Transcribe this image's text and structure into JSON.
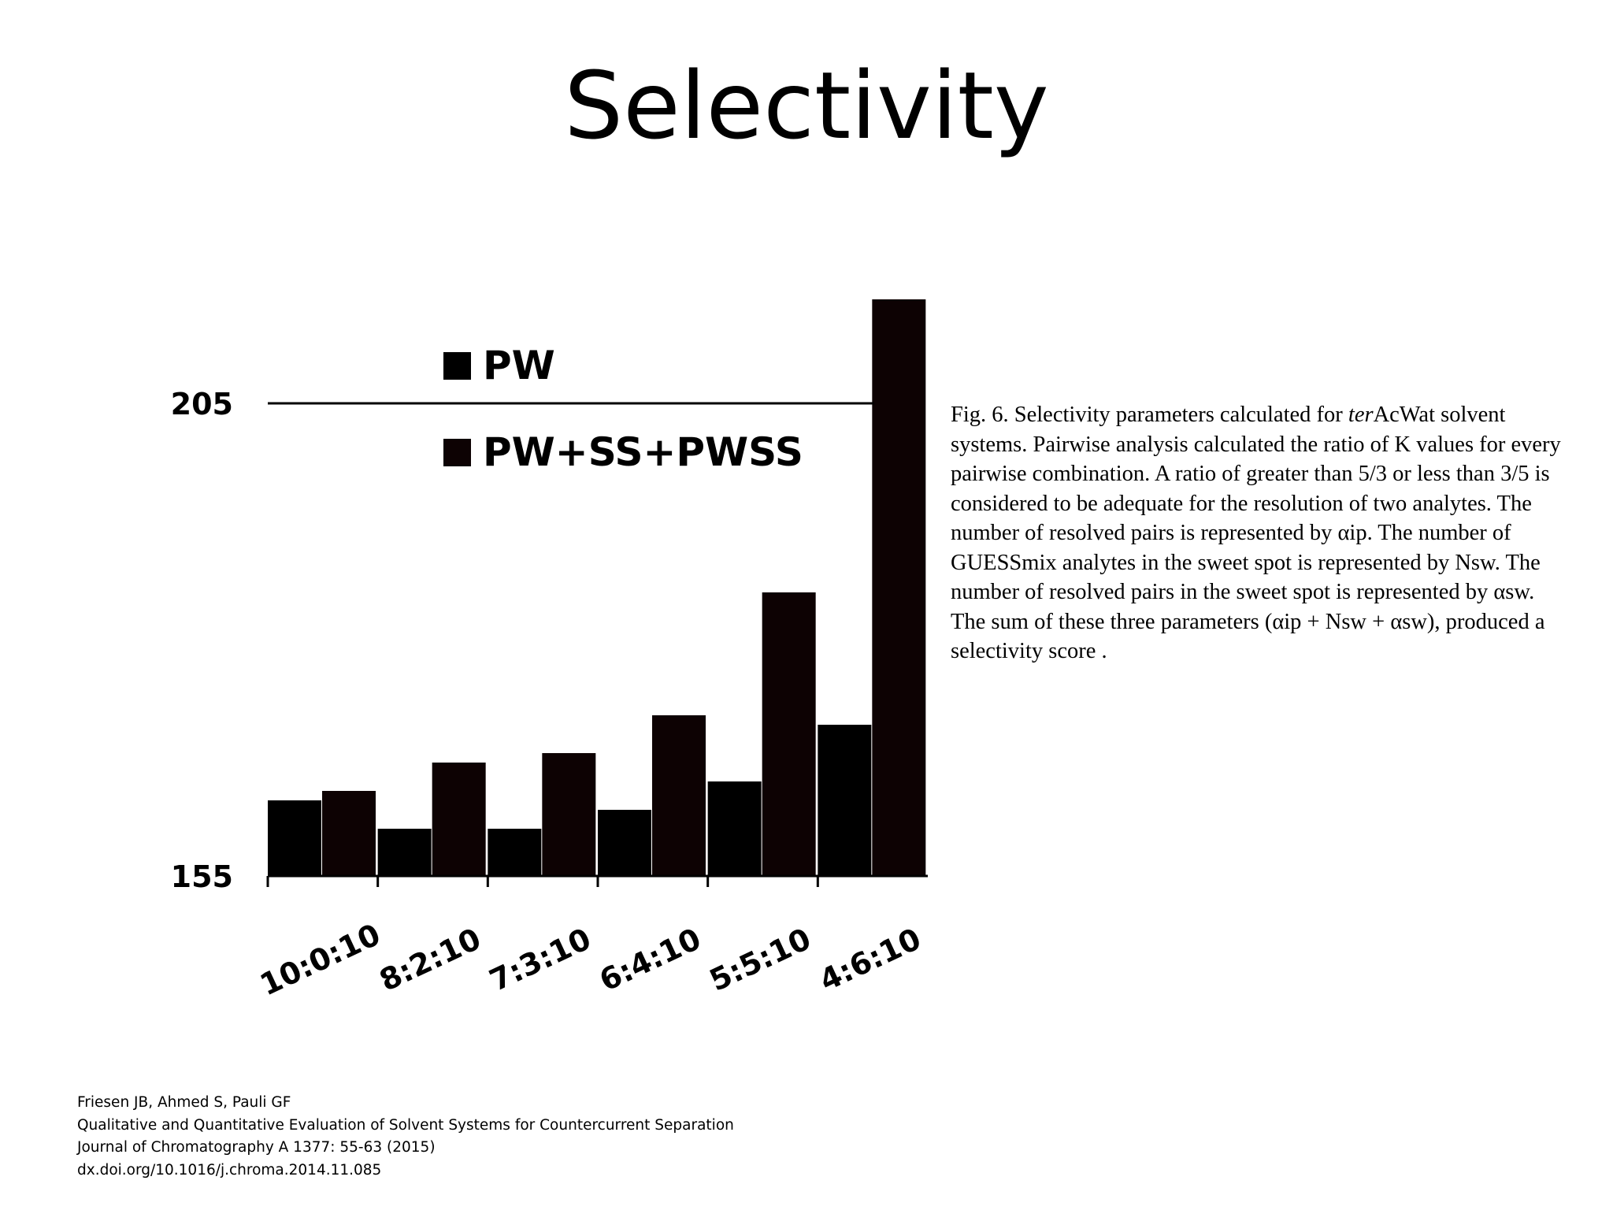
{
  "slide": {
    "title": "Selectivity"
  },
  "chart_data": {
    "type": "bar",
    "categories": [
      "10:0:10",
      "8:2:10",
      "7:3:10",
      "6:4:10",
      "5:5:10",
      "4:6:10"
    ],
    "series": [
      {
        "name": "PW",
        "values": [
          163,
          160,
          160,
          162,
          165,
          171
        ],
        "color": "#000000"
      },
      {
        "name": "PW+SS+PWSS",
        "values": [
          164,
          167,
          168,
          172,
          185,
          216
        ],
        "color": "#0d0203"
      }
    ],
    "y_ticks": [
      "205",
      "155"
    ],
    "ylim": [
      155,
      216
    ],
    "reference_line": 205,
    "xlabel": "",
    "ylabel": "",
    "grid": false,
    "legend_position": "top-left"
  },
  "caption": {
    "prefix": "Fig. 6. Selectivity parameters calculated for ",
    "italic": "ter",
    "rest": "AcWat solvent systems. Pairwise analysis calculated the ratio of K values for every pairwise combination. A ratio of greater than 5/3 or less than 3/5 is considered to be adequate for the resolution of two analytes. The number of resolved pairs is represented by αip. The number of GUESSmix analytes in the sweet spot is represented by Nsw. The number of resolved pairs in the sweet spot is represented by αsw. The sum of these three parameters (αip + Nsw + αsw), produced a selectivity score ."
  },
  "reference": {
    "authors": "Friesen JB, Ahmed S, Pauli GF",
    "title": "Qualitative and Quantitative Evaluation of Solvent Systems for Countercurrent Separation",
    "journal": "Journal of Chromatography A 1377: 55-63 (2015)",
    "doi": "dx.doi.org/10.1016/j.chroma.2014.11.085"
  }
}
